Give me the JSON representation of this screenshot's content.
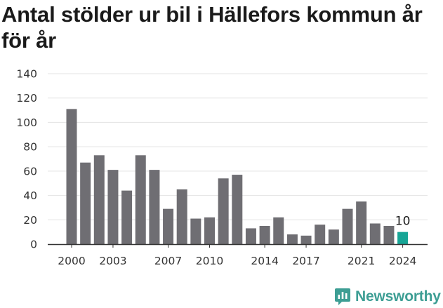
{
  "title": "Antal stölder ur bil i Hällefors kommun år för år",
  "brand": {
    "name": "Newsworthy",
    "icon": "newsworthy-logo-icon",
    "color": "#3d9e94"
  },
  "colors": {
    "bar": "#6f6e73",
    "highlight": "#17a596",
    "grid": "#e3e3e3",
    "axis": "#333333"
  },
  "chart_data": {
    "type": "bar",
    "title": "Antal stölder ur bil i Hällefors kommun år för år",
    "xlabel": "",
    "ylabel": "",
    "ylim": [
      0,
      140
    ],
    "yticks": [
      0,
      20,
      40,
      60,
      80,
      100,
      120,
      140
    ],
    "grid": true,
    "categories": [
      2000,
      2001,
      2002,
      2003,
      2004,
      2005,
      2006,
      2007,
      2008,
      2009,
      2010,
      2011,
      2012,
      2013,
      2014,
      2015,
      2016,
      2017,
      2018,
      2019,
      2020,
      2021,
      2022,
      2023,
      2024
    ],
    "values": [
      111,
      67,
      73,
      61,
      44,
      73,
      61,
      29,
      45,
      21,
      22,
      54,
      57,
      13,
      15,
      22,
      8,
      7,
      16,
      12,
      29,
      35,
      17,
      15,
      10
    ],
    "xtick_labels": [
      "2000",
      "2003",
      "2007",
      "2010",
      "2014",
      "2017",
      "2021",
      "2024"
    ],
    "highlight": {
      "category": 2024,
      "value": 10,
      "label": "10"
    }
  }
}
